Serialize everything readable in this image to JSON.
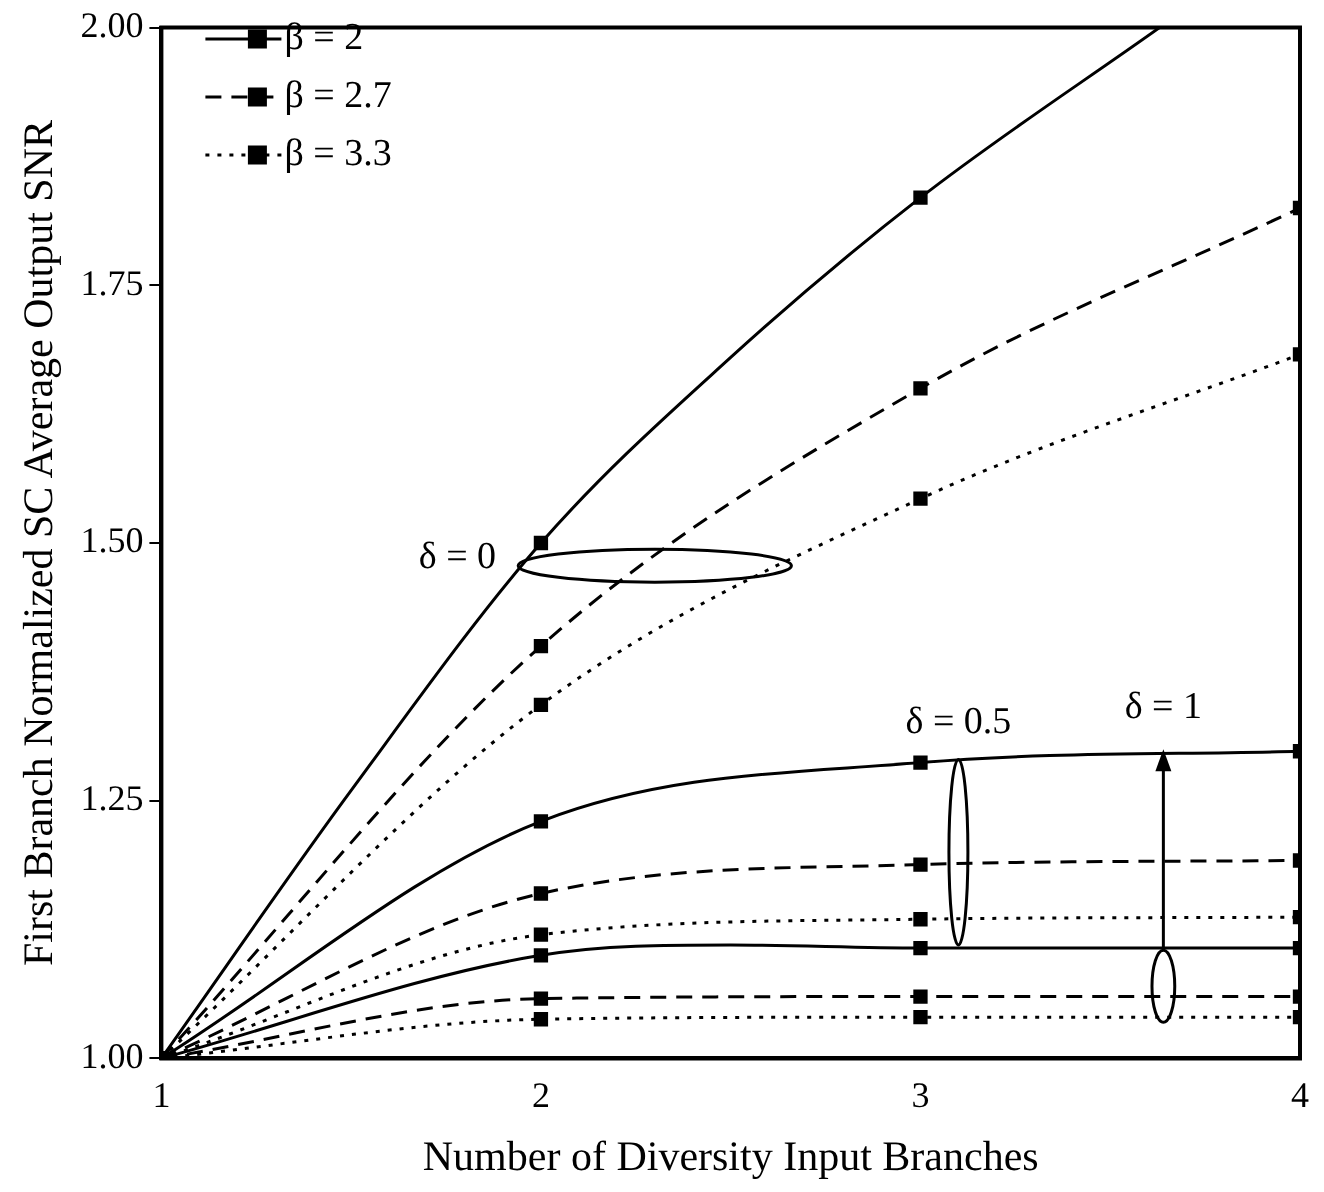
{
  "chart_data": {
    "type": "line",
    "xlabel": "Number of Diversity Input Branches",
    "ylabel": "First Branch Normalized SC Average Output SNR",
    "xlim": [
      1,
      4
    ],
    "xticks": [
      1,
      2,
      3,
      4
    ],
    "ylim": [
      1,
      2
    ],
    "yticks": [
      {
        "value": 1,
        "label": "1.00"
      },
      {
        "value": 1.25,
        "label": "1.25"
      },
      {
        "value": 1.5,
        "label": "1.50"
      },
      {
        "value": 1.75,
        "label": "1.75"
      },
      {
        "value": 2,
        "label": "2.00"
      }
    ],
    "grid": false,
    "legend": "top left",
    "marker": "square",
    "series": [
      {
        "name": "β = 2",
        "color": "#000000",
        "line_style": "solid",
        "x": [
          1,
          1.5,
          2,
          2.5,
          3,
          3.63
        ],
        "values": [
          1,
          1.26,
          1.5,
          1.68,
          1.835,
          2.0
        ]
      },
      {
        "name": "β = 2.7",
        "color": "#000000",
        "line_style": "dashed",
        "x": [
          1,
          2,
          3,
          4
        ],
        "values": [
          1,
          1.4,
          1.65,
          1.825
        ]
      },
      {
        "name": "β = 3.3",
        "color": "#000000",
        "line_style": "dotted",
        "x": [
          1,
          2,
          3,
          4
        ],
        "values": [
          1,
          1.343,
          1.543,
          1.683
        ]
      },
      {
        "color": "#000000",
        "line_style": "solid",
        "x": [
          1,
          2,
          3,
          4
        ],
        "values": [
          1,
          1.23,
          1.287,
          1.298
        ]
      },
      {
        "color": "#000000",
        "line_style": "dashed",
        "x": [
          1,
          2,
          3,
          4
        ],
        "values": [
          1,
          1.16,
          1.188,
          1.192
        ]
      },
      {
        "color": "#000000",
        "line_style": "dotted",
        "x": [
          1,
          2,
          3,
          4
        ],
        "values": [
          1,
          1.12,
          1.135,
          1.137
        ]
      },
      {
        "color": "#000000",
        "line_style": "solid",
        "x": [
          1,
          2,
          2.5,
          3,
          4
        ],
        "values": [
          1,
          1.1,
          1.11,
          1.107,
          1.107
        ]
      },
      {
        "color": "#000000",
        "line_style": "dashed",
        "x": [
          1,
          2,
          3,
          4
        ],
        "values": [
          1,
          1.058,
          1.06,
          1.06
        ]
      },
      {
        "color": "#000000",
        "line_style": "dotted",
        "x": [
          1,
          2,
          3,
          4
        ],
        "values": [
          1,
          1.038,
          1.04,
          1.04
        ]
      }
    ],
    "annotations": [
      "δ = 0",
      "δ = 0.5",
      {
        "text": "δ = 1",
        "x": 3.64,
        "y": 1.3
      }
    ]
  }
}
